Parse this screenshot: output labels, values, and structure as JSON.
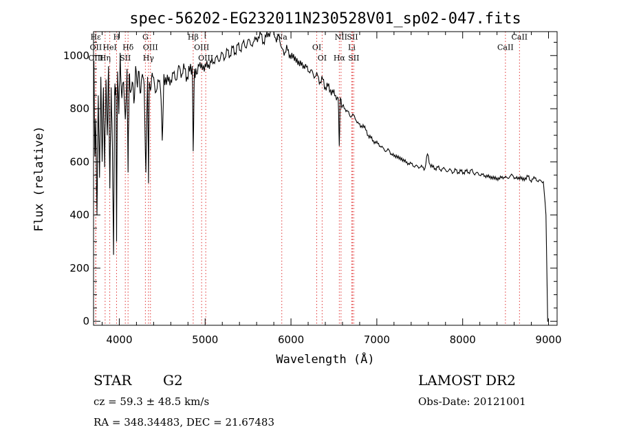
{
  "chart_data": {
    "type": "line",
    "title": "spec-56202-EG232011N230528V01_sp02-047.fits",
    "xlabel": "Wavelength (Å)",
    "ylabel": "Flux (relative)",
    "xlim": [
      3700,
      9100
    ],
    "ylim": [
      -15,
      1090
    ],
    "xticks": [
      4000,
      5000,
      6000,
      7000,
      8000,
      9000
    ],
    "yticks": [
      0,
      200,
      400,
      600,
      800,
      1000
    ],
    "grid": false,
    "line_color": "#000000",
    "marker_color": "#e03030",
    "spectrum": {
      "wavelength": [
        3705,
        3715,
        3725,
        3740,
        3755,
        3770,
        3785,
        3800,
        3815,
        3830,
        3845,
        3860,
        3875,
        3890,
        3905,
        3920,
        3933,
        3945,
        3960,
        3968,
        3980,
        3995,
        4010,
        4030,
        4050,
        4070,
        4090,
        4102,
        4115,
        4130,
        4150,
        4170,
        4190,
        4210,
        4230,
        4250,
        4270,
        4290,
        4310,
        4330,
        4340,
        4350,
        4370,
        4390,
        4420,
        4450,
        4480,
        4500,
        4520,
        4550,
        4580,
        4610,
        4640,
        4670,
        4700,
        4730,
        4760,
        4790,
        4820,
        4850,
        4861,
        4875,
        4900,
        4930,
        4960,
        4990,
        5020,
        5050,
        5080,
        5110,
        5140,
        5170,
        5200,
        5230,
        5260,
        5290,
        5320,
        5350,
        5380,
        5410,
        5440,
        5470,
        5500,
        5530,
        5560,
        5590,
        5620,
        5650,
        5680,
        5710,
        5740,
        5770,
        5800,
        5830,
        5860,
        5890,
        5920,
        5950,
        5980,
        6010,
        6040,
        6070,
        6100,
        6130,
        6160,
        6190,
        6220,
        6250,
        6280,
        6310,
        6340,
        6370,
        6400,
        6430,
        6460,
        6490,
        6520,
        6550,
        6563,
        6575,
        6600,
        6630,
        6660,
        6690,
        6720,
        6750,
        6780,
        6810,
        6840,
        6870,
        6900,
        6930,
        6960,
        6990,
        7020,
        7050,
        7080,
        7110,
        7140,
        7170,
        7200,
        7230,
        7260,
        7290,
        7320,
        7350,
        7380,
        7410,
        7440,
        7470,
        7500,
        7530,
        7560,
        7590,
        7620,
        7650,
        7680,
        7710,
        7740,
        7770,
        7800,
        7830,
        7860,
        7890,
        7920,
        7950,
        7980,
        8010,
        8040,
        8070,
        8100,
        8130,
        8160,
        8190,
        8220,
        8250,
        8280,
        8310,
        8340,
        8370,
        8400,
        8430,
        8460,
        8490,
        8520,
        8550,
        8580,
        8610,
        8640,
        8670,
        8700,
        8730,
        8760,
        8790,
        8820,
        8850,
        8880,
        8910,
        8940,
        8970,
        8990,
        8995,
        9000,
        9010
      ],
      "flux": [
        980,
        620,
        760,
        400,
        850,
        540,
        920,
        600,
        880,
        580,
        910,
        700,
        960,
        500,
        880,
        650,
        250,
        860,
        880,
        300,
        940,
        780,
        1010,
        840,
        900,
        760,
        950,
        560,
        930,
        860,
        900,
        820,
        960,
        880,
        940,
        860,
        930,
        890,
        560,
        920,
        520,
        900,
        880,
        920,
        860,
        910,
        870,
        680,
        930,
        890,
        920,
        900,
        940,
        910,
        960,
        930,
        950,
        920,
        940,
        960,
        640,
        950,
        930,
        960,
        970,
        940,
        980,
        950,
        990,
        970,
        1000,
        980,
        1010,
        990,
        1020,
        1000,
        1030,
        1010,
        1040,
        1020,
        1050,
        1030,
        1060,
        1040,
        1050,
        1060,
        1070,
        1080,
        1050,
        1070,
        1085,
        1090,
        1100,
        1050,
        1080,
        1030,
        1000,
        1040,
        990,
        1010,
        980,
        990,
        960,
        975,
        950,
        960,
        935,
        940,
        920,
        925,
        900,
        910,
        880,
        885,
        870,
        860,
        850,
        840,
        660,
        840,
        810,
        800,
        790,
        770,
        780,
        760,
        750,
        730,
        740,
        720,
        700,
        690,
        680,
        670,
        670,
        655,
        650,
        640,
        645,
        630,
        620,
        625,
        610,
        615,
        600,
        600,
        590,
        595,
        580,
        585,
        580,
        580,
        575,
        630,
        590,
        580,
        575,
        580,
        570,
        575,
        570,
        565,
        570,
        560,
        570,
        560,
        565,
        560,
        565,
        560,
        570,
        555,
        560,
        550,
        555,
        545,
        550,
        540,
        545,
        535,
        540,
        535,
        545,
        540,
        540,
        545,
        550,
        540,
        535,
        545,
        530,
        540,
        545,
        530,
        535,
        540,
        525,
        530,
        525,
        400,
        0,
        0
      ]
    },
    "lines": [
      {
        "label": "Hε",
        "x": 3725,
        "y_label": 1070
      },
      {
        "label": "OII",
        "x": 3727,
        "y_label": 1032
      },
      {
        "label": "OIII",
        "x": 3727,
        "y_label": 992
      },
      {
        "label": "Hη",
        "x": 3835,
        "y_label": 992
      },
      {
        "label": "HeI",
        "x": 3889,
        "y_label": 1032
      },
      {
        "label": "H",
        "x": 3968,
        "y_label": 1070
      },
      {
        "label": "Hδ",
        "x": 4102,
        "y_label": 1032
      },
      {
        "label": "SII",
        "x": 4070,
        "y_label": 992
      },
      {
        "label": "G",
        "x": 4304,
        "y_label": 1070
      },
      {
        "label": "OIII",
        "x": 4363,
        "y_label": 1032
      },
      {
        "label": "Hγ",
        "x": 4340,
        "y_label": 992
      },
      {
        "label": "Hβ",
        "x": 4861,
        "y_label": 1070
      },
      {
        "label": "OIII",
        "x": 4959,
        "y_label": 1032
      },
      {
        "label": "OIII",
        "x": 5007,
        "y_label": 992
      },
      {
        "label": "Na",
        "x": 5893,
        "y_label": 1070
      },
      {
        "label": "OI",
        "x": 6300,
        "y_label": 1032
      },
      {
        "label": "OI",
        "x": 6363,
        "y_label": 992
      },
      {
        "label": "NII",
        "x": 6583,
        "y_label": 1070
      },
      {
        "label": "Hα",
        "x": 6563,
        "y_label": 992
      },
      {
        "label": "Li",
        "x": 6708,
        "y_label": 1032
      },
      {
        "label": "SII",
        "x": 6716,
        "y_label": 1070
      },
      {
        "label": "SII",
        "x": 6731,
        "y_label": 992
      },
      {
        "label": "CaII",
        "x": 8498,
        "y_label": 1032
      },
      {
        "label": "CaII",
        "x": 8662,
        "y_label": 1070
      }
    ]
  },
  "info": {
    "object_class": "STAR",
    "subclass": "G2",
    "survey": "LAMOST DR2",
    "redshift": "cz = 59.3 ± 48.5 km/s",
    "obs_date": "Obs-Date: 20121001",
    "coords": "RA = 348.34483, DEC =  21.67483"
  }
}
